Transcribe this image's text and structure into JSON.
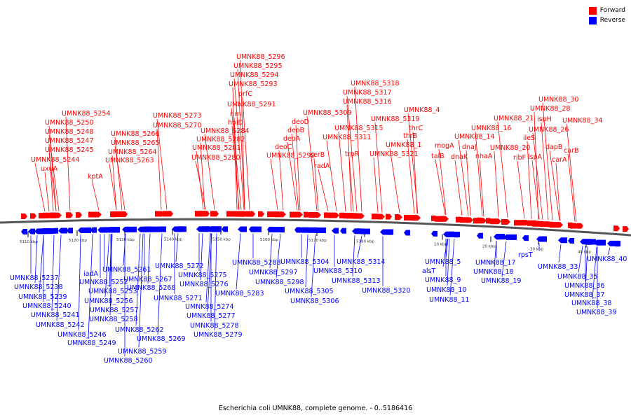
{
  "colors": {
    "forward": "#ff0000",
    "reverse": "#0000ff",
    "axis": "#555555"
  },
  "legend": {
    "forward_label": "Forward",
    "reverse_label": "Reverse"
  },
  "caption": "Escherichia coli UMNK88, complete genome. - 0..5186416",
  "scale_labels": [
    "5110 kbp",
    "5120 kbp",
    "5130 kbp",
    "5140 kbp",
    "5150 kbp",
    "5160 kbp",
    "5170 kbp",
    "5180 kbp",
    "10 kbp",
    "20 kbp",
    "30 kbp",
    "40 kbp"
  ],
  "forward_genes": [
    "UMNK88_5296",
    "UMNK88_5295",
    "UMNK88_5294",
    "UMNK88_5293",
    "prfC",
    "UMNK88_5291",
    "rimI",
    "holD",
    "UMNK88_5284",
    "UMNK88_5282",
    "UMNK88_5281",
    "UMNK88_5280",
    "UMNK88_5254",
    "UMNK88_5250",
    "UMNK88_5248",
    "UMNK88_5247",
    "UMNK88_5245",
    "UMNK88_5244",
    "uxuA",
    "kptA",
    "UMNK88_5273",
    "UMNK88_5270",
    "UMNK88_5266",
    "UMNK88_5265",
    "UMNK88_5264",
    "UMNK88_5263",
    "UMNK88_5309",
    "deoD",
    "deoB",
    "deoA",
    "deoC",
    "UMNK88_5299",
    "radA",
    "serB",
    "UMNK88_5318",
    "UMNK88_5317",
    "UMNK88_5316",
    "UMNK88_5315",
    "UMNK88_5311",
    "trpR",
    "UMNK88_5319",
    "UMNK88_4",
    "thrC",
    "thrB",
    "UMNK88_1",
    "UMNK88_5321",
    "mogA",
    "talB",
    "dnaJ",
    "dnaK",
    "UMNK88_14",
    "nhaA",
    "UMNK88_16",
    "UMNK88_21",
    "UMNK88_20",
    "ribF",
    "UMNK88_30",
    "UMNK88_28",
    "ispH",
    "UMNK88_26",
    "ileS",
    "lspA",
    "dapB",
    "carA",
    "carB",
    "UMNK88_34"
  ],
  "reverse_genes": [
    "UMNK88_5237",
    "UMNK88_5238",
    "UMNK88_5239",
    "UMNK88_5240",
    "UMNK88_5241",
    "UMNK88_5242",
    "iadA",
    "UMNK88_5246",
    "UMNK88_5249",
    "UMNK88_5252",
    "UMNK88_5253",
    "UMNK88_5256",
    "UMNK88_5257",
    "UMNK88_5258",
    "UMNK88_5259",
    "UMNK88_5260",
    "UMNK88_5261",
    "UMNK88_5262",
    "UMNK88_5267",
    "UMNK88_5268",
    "UMNK88_5269",
    "UMNK88_5271",
    "UMNK88_5272",
    "UMNK88_5274",
    "UMNK88_5275",
    "UMNK88_5276",
    "UMNK88_5277",
    "UMNK88_5278",
    "UMNK88_5279",
    "UMNK88_5283",
    "UMNK88_5288",
    "UMNK88_5297",
    "UMNK88_5298",
    "UMNK88_5304",
    "UMNK88_5305",
    "UMNK88_5306",
    "UMNK88_5310",
    "UMNK88_5313",
    "UMNK88_5314",
    "UMNK88_5320",
    "UMNK88_5",
    "alsT",
    "UMNK88_9",
    "UMNK88_10",
    "UMNK88_11",
    "UMNK88_17",
    "UMNK88_18",
    "UMNK88_19",
    "rpsT",
    "UMNK88_33",
    "UMNK88_35",
    "UMNK88_36",
    "UMNK88_37",
    "UMNK88_38",
    "UMNK88_39",
    "UMNK88_40"
  ]
}
